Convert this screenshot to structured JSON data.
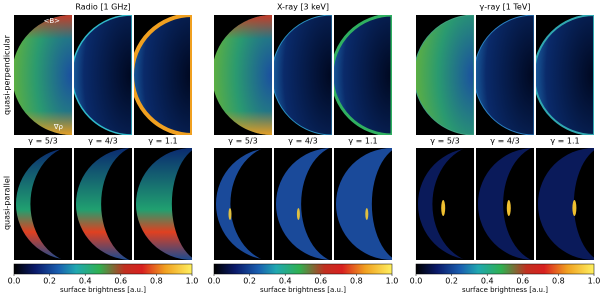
{
  "figure": {
    "row_labels": [
      "quasi-perpendicular",
      "quasi-parallel"
    ],
    "annotations": {
      "field": "<B>",
      "gradient": "∇ρ"
    },
    "groups": [
      {
        "title": "Radio [1 GHz]",
        "gammas": [
          "γ = 5/3",
          "γ = 4/3",
          "γ = 1.1"
        ],
        "colorbar": {
          "ticks": [
            "0.0",
            "0.2",
            "0.4",
            "0.6",
            "0.8",
            "1.0"
          ],
          "label": "surface brightness [a.u.]"
        }
      },
      {
        "title": "X-ray [3 keV]",
        "gammas": [
          "γ = 5/3",
          "γ = 4/3",
          "γ = 1.1"
        ],
        "colorbar": {
          "ticks": [
            "0.0",
            "0.2",
            "0.4",
            "0.6",
            "0.8",
            "1.0"
          ],
          "label": "surface brightness [a.u.]"
        }
      },
      {
        "title": "γ-ray [1 TeV]",
        "gammas": [
          "γ = 5/3",
          "γ = 4/3",
          "γ = 1.1"
        ],
        "colorbar": {
          "ticks": [
            "0.0",
            "0.2",
            "0.4",
            "0.6",
            "0.8",
            "1.0"
          ],
          "label": "surface brightness [a.u.]"
        }
      }
    ]
  }
}
